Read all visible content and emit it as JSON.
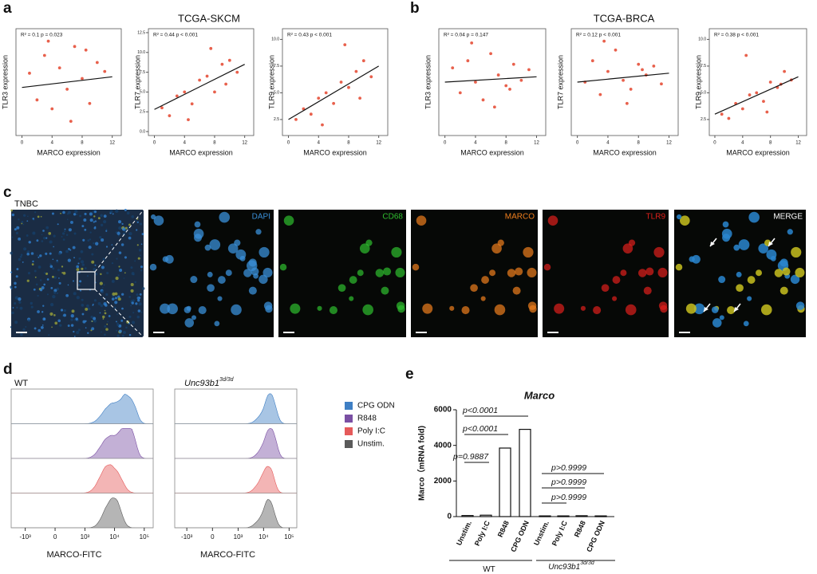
{
  "figure": {
    "a": {
      "label": "a",
      "title": "TCGA-SKCM"
    },
    "b": {
      "label": "b",
      "title": "TCGA-BRCA"
    },
    "c": {
      "label": "c",
      "sample": "TNBC",
      "channels": [
        "DAPI",
        "CD68",
        "MARCO",
        "TLR9",
        "MERGE"
      ],
      "channel_colors": [
        "#3a8fd8",
        "#2fbf2f",
        "#f07f1e",
        "#e0201c",
        "#ffffff"
      ]
    },
    "d": {
      "label": "d"
    },
    "e": {
      "label": "e"
    }
  },
  "chart_data": [
    {
      "type": "scatter",
      "ylabel": "TLR3 expression",
      "xlabel": "MARCO expression",
      "stat": "R² = 0.1   p = 0.023",
      "xlim": [
        -0.8,
        13.2
      ],
      "xticks": [
        0,
        4,
        8,
        12
      ],
      "ylim": [
        1,
        7
      ],
      "color": "#e8604c",
      "x": [
        1,
        2,
        3,
        4,
        5,
        6,
        7,
        8,
        9,
        10,
        11,
        3.5,
        6.5,
        8.5
      ],
      "y": [
        4.5,
        3.0,
        5.5,
        2.5,
        4.8,
        3.6,
        6.0,
        4.2,
        2.8,
        5.1,
        4.6,
        6.3,
        1.8,
        5.8
      ],
      "fit": {
        "x": [
          0,
          12
        ],
        "y": [
          3.7,
          4.3
        ]
      }
    },
    {
      "type": "scatter",
      "ylabel": "TLR7 expression",
      "xlabel": "MARCO expression",
      "stat": "R² = 0.44   p < 0.001",
      "xlim": [
        -0.8,
        13.2
      ],
      "xticks": [
        0,
        4,
        8,
        12
      ],
      "ylim": [
        -0.5,
        13
      ],
      "yticks": [
        {
          "value": 0,
          "label": "0.0"
        },
        {
          "value": 2.5,
          "label": "2.5"
        },
        {
          "value": 5,
          "label": "5.0"
        },
        {
          "value": 7.5,
          "label": "7.5"
        },
        {
          "value": 10,
          "label": "10.0"
        },
        {
          "value": 12.5,
          "label": "12.5"
        }
      ],
      "color": "#e8604c",
      "x": [
        1,
        2,
        3,
        4,
        5,
        6,
        7,
        8,
        9,
        10,
        11,
        4.5,
        7.5,
        9.5
      ],
      "y": [
        3,
        2,
        4.5,
        5,
        3.5,
        6.5,
        7,
        5,
        8.5,
        9,
        7.5,
        1.5,
        10.5,
        6
      ],
      "fit": {
        "x": [
          0,
          12
        ],
        "y": [
          2.8,
          8.5
        ]
      }
    },
    {
      "type": "scatter",
      "ylabel": "TLR9 expression",
      "xlabel": "MARCO expression",
      "stat": "R² = 0.43   p < 0.001",
      "xlim": [
        -0.8,
        13.2
      ],
      "xticks": [
        0,
        4,
        8,
        12
      ],
      "ylim": [
        1,
        11
      ],
      "yticks": [
        2.5,
        {
          "value": 5,
          "label": "5.0"
        },
        7.5,
        {
          "value": 10,
          "label": "10.0"
        }
      ],
      "color": "#e8604c",
      "x": [
        1,
        2,
        3,
        4,
        5,
        6,
        7,
        8,
        9,
        10,
        11,
        4.5,
        7.5,
        9.5
      ],
      "y": [
        2.5,
        3.5,
        3,
        4.5,
        5,
        4,
        6,
        5.5,
        7,
        8,
        6.5,
        2,
        9.5,
        4.5
      ],
      "fit": {
        "x": [
          0,
          12
        ],
        "y": [
          2.5,
          7.5
        ]
      }
    },
    {
      "type": "scatter",
      "ylabel": "TLR3 expression",
      "xlabel": "MARCO expression",
      "stat": "R² = 0.04   p = 0.147",
      "xlim": [
        -0.8,
        13.2
      ],
      "xticks": [
        0,
        4,
        8,
        12
      ],
      "ylim": [
        1,
        7
      ],
      "color": "#e8604c",
      "x": [
        1,
        2,
        3,
        4,
        5,
        6,
        7,
        8,
        9,
        10,
        11,
        3.5,
        6.5,
        8.5
      ],
      "y": [
        4.8,
        3.4,
        5.2,
        4.0,
        3.0,
        5.6,
        4.4,
        3.8,
        5.0,
        4.1,
        4.7,
        6.2,
        2.6,
        3.6
      ],
      "fit": {
        "x": [
          0,
          12
        ],
        "y": [
          4.0,
          4.3
        ]
      }
    },
    {
      "type": "scatter",
      "ylabel": "TLR7 expression",
      "xlabel": "MARCO expression",
      "stat": "R² = 0.12   p < 0.001",
      "xlim": [
        -0.8,
        13.2
      ],
      "xticks": [
        0,
        4,
        8,
        12
      ],
      "ylim": [
        1,
        7
      ],
      "color": "#e8604c",
      "x": [
        1,
        2,
        3,
        4,
        5,
        6,
        7,
        8,
        9,
        10,
        11,
        3.5,
        6.5,
        8.5
      ],
      "y": [
        4.0,
        5.2,
        3.3,
        4.6,
        5.8,
        4.1,
        3.6,
        5.0,
        4.4,
        4.9,
        3.9,
        6.3,
        2.8,
        4.7
      ],
      "fit": {
        "x": [
          0,
          12
        ],
        "y": [
          4.0,
          4.5
        ]
      }
    },
    {
      "type": "scatter",
      "ylabel": "TLR9 expression",
      "xlabel": "MARCO expression",
      "stat": "R² = 0.38   p < 0.001",
      "xlim": [
        -0.8,
        13.2
      ],
      "xticks": [
        0,
        4,
        8,
        12
      ],
      "ylim": [
        1,
        11
      ],
      "yticks": [
        2.5,
        {
          "value": 5,
          "label": "5.0"
        },
        7.5,
        {
          "value": 10,
          "label": "10.0"
        }
      ],
      "color": "#e8604c",
      "x": [
        1,
        2,
        3,
        4,
        5,
        6,
        7,
        8,
        9,
        10,
        11,
        4.5,
        7.5,
        9.5
      ],
      "y": [
        3,
        2.6,
        4,
        3.5,
        4.8,
        5,
        4.2,
        6,
        5.5,
        7,
        6.2,
        8.5,
        3.2,
        5.8
      ],
      "fit": {
        "x": [
          0,
          12
        ],
        "y": [
          3.0,
          6.5
        ]
      }
    },
    {
      "type": "density",
      "panels": [
        {
          "name": "WT"
        },
        {
          "name": "Unc93b1",
          "sup": "3d/3d"
        }
      ],
      "xlabel": "MARCO-FITC",
      "xlim": [
        -3000,
        200000
      ],
      "xticks": [
        {
          "value": -1000,
          "label": "-10³"
        },
        0,
        {
          "value": 1000,
          "label": "10³"
        },
        {
          "value": 10000,
          "label": "10⁴"
        },
        {
          "value": 100000,
          "label": "10⁵"
        }
      ],
      "series": [
        {
          "name": "CPG ODN",
          "color": "#3f7fc4"
        },
        {
          "name": "R848",
          "color": "#7a4fa3"
        },
        {
          "name": "Poly I:C",
          "color": "#e55a5a"
        },
        {
          "name": "Unstim.",
          "color": "#5a5a5a"
        }
      ]
    },
    {
      "type": "bar",
      "title": "Marco",
      "ylabel": "Marco（mRNA fold)",
      "ylim": [
        0,
        6000
      ],
      "yticks": [
        0,
        2000,
        4000,
        6000
      ],
      "categories": [
        "Unstim.",
        "Poly I:C",
        "R848",
        "CPG ODN",
        "Unstim.",
        "Poly I:C",
        "R848",
        "CPG ODN"
      ],
      "values": [
        60,
        80,
        3850,
        4900,
        40,
        40,
        50,
        40
      ],
      "groups": [
        {
          "name": "WT"
        },
        {
          "name": "Unc93b1",
          "sup": "3d/3d"
        }
      ],
      "annotations": [
        "p=0.9887",
        "p<0.0001",
        "p<0.0001",
        "p>0.9999",
        "p>0.9999",
        "p>0.9999"
      ]
    }
  ]
}
